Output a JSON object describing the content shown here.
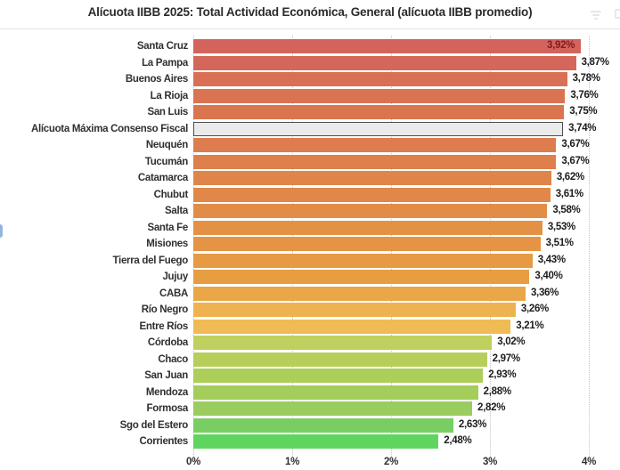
{
  "header": {
    "title": "Alícuota IIBB 2025: Total Actividad Económica, General (alícuota IIBB promedio)"
  },
  "chart_data": {
    "type": "bar",
    "orientation": "horizontal",
    "title": "Alícuota IIBB 2025: Total Actividad Económica, General (alícuota IIBB promedio)",
    "xlabel": "",
    "ylabel": "",
    "xlim": [
      0,
      4
    ],
    "x_tick_labels": [
      "0%",
      "1%",
      "2%",
      "3%",
      "4%"
    ],
    "grid": "vertical-dotted",
    "legend": "none",
    "rows": [
      {
        "label": "Santa Cruz",
        "value": 3.92,
        "display": "3,92%",
        "color": "#d4635c",
        "inside": true
      },
      {
        "label": "La Pampa",
        "value": 3.87,
        "display": "3,87%",
        "color": "#d5675a"
      },
      {
        "label": "Buenos Aires",
        "value": 3.78,
        "display": "3,78%",
        "color": "#d97055"
      },
      {
        "label": "La Rioja",
        "value": 3.76,
        "display": "3,76%",
        "color": "#da7352"
      },
      {
        "label": "San Luis",
        "value": 3.75,
        "display": "3,75%",
        "color": "#db7550"
      },
      {
        "label": "Alícuota Máxima Consenso Fiscal",
        "value": 3.74,
        "display": "3,74%",
        "color": "#e9eae9",
        "reference": true
      },
      {
        "label": "Neuquén",
        "value": 3.67,
        "display": "3,67%",
        "color": "#dd7c4e"
      },
      {
        "label": "Tucumán",
        "value": 3.67,
        "display": "3,67%",
        "color": "#de7f4c"
      },
      {
        "label": "Catamarca",
        "value": 3.62,
        "display": "3,62%",
        "color": "#e0854a"
      },
      {
        "label": "Chubut",
        "value": 3.61,
        "display": "3,61%",
        "color": "#e18848"
      },
      {
        "label": "Salta",
        "value": 3.58,
        "display": "3,58%",
        "color": "#e28d47"
      },
      {
        "label": "Santa Fe",
        "value": 3.53,
        "display": "3,53%",
        "color": "#e39245"
      },
      {
        "label": "Misiones",
        "value": 3.51,
        "display": "3,51%",
        "color": "#e49444"
      },
      {
        "label": "Tierra del Fuego",
        "value": 3.43,
        "display": "3,43%",
        "color": "#e69a43"
      },
      {
        "label": "Jujuy",
        "value": 3.4,
        "display": "3,40%",
        "color": "#e79e43"
      },
      {
        "label": "CABA",
        "value": 3.36,
        "display": "3,36%",
        "color": "#e9a748"
      },
      {
        "label": "Río Negro",
        "value": 3.26,
        "display": "3,26%",
        "color": "#eeb350"
      },
      {
        "label": "Entre Ríos",
        "value": 3.21,
        "display": "3,21%",
        "color": "#f0bb55"
      },
      {
        "label": "Córdoba",
        "value": 3.02,
        "display": "3,02%",
        "color": "#c0d05e"
      },
      {
        "label": "Chaco",
        "value": 2.97,
        "display": "2,97%",
        "color": "#b6cf5b"
      },
      {
        "label": "San Juan",
        "value": 2.93,
        "display": "2,93%",
        "color": "#adce59"
      },
      {
        "label": "Mendoza",
        "value": 2.88,
        "display": "2,88%",
        "color": "#a4cd5b"
      },
      {
        "label": "Formosa",
        "value": 2.82,
        "display": "2,82%",
        "color": "#9acc5f"
      },
      {
        "label": "Sgo del Estero",
        "value": 2.63,
        "display": "2,63%",
        "color": "#79ce63"
      },
      {
        "label": "Corrientes",
        "value": 2.48,
        "display": "2,48%",
        "color": "#5fd55f"
      }
    ]
  }
}
